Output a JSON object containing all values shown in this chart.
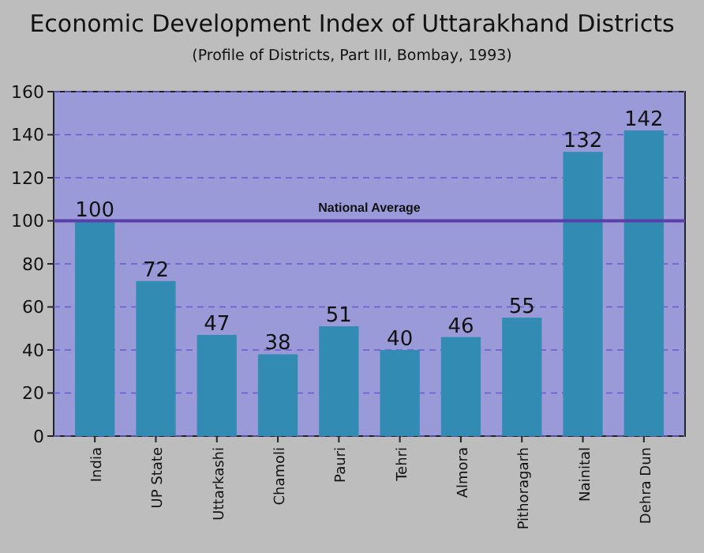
{
  "chart_data": {
    "type": "bar",
    "title": "Economic Development Index of Uttarakhand Districts",
    "subtitle": "(Profile of Districts, Part III, Bombay, 1993)",
    "categories": [
      "India",
      "UP State",
      "Uttarkashi",
      "Chamoli",
      "Pauri",
      "Tehri",
      "Almora",
      "Pithoragarh",
      "Nainital",
      "Dehra Dun"
    ],
    "values": [
      100,
      72,
      47,
      38,
      51,
      40,
      46,
      55,
      132,
      142
    ],
    "color": "#318bb3",
    "ylim": [
      0,
      160
    ],
    "yticks": [
      0,
      20,
      40,
      60,
      80,
      100,
      120,
      140,
      160
    ],
    "grid": "y",
    "data_labels": true,
    "ref_lines": [
      {
        "axis": "y",
        "value": 100,
        "label": "National Average",
        "color": "#5b3fa8"
      }
    ]
  }
}
